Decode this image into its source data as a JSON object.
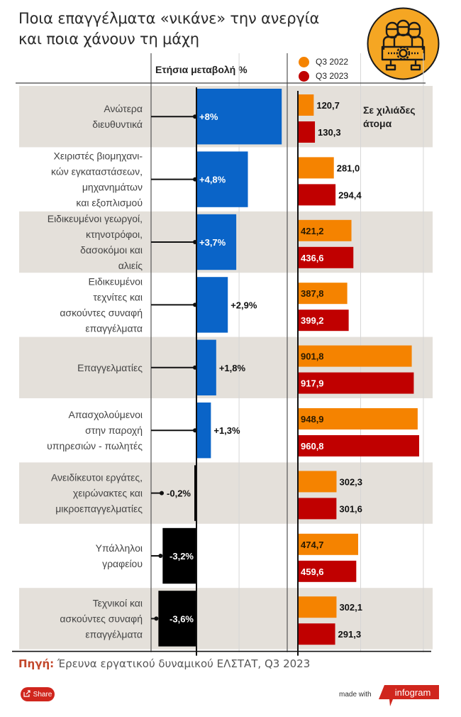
{
  "header": {
    "title_line1": "Ποια επαγγέλματα «νικάνε» την ανεργία",
    "title_line2": "και ποια χάνουν τη μάχη",
    "icon": "workers-gear-icon"
  },
  "chart_data": [
    {
      "type": "bar",
      "orientation": "horizontal",
      "title": "Ετήσια μεταβολή %",
      "categories": [
        [
          "Ανώτερα",
          "διευθυντικά"
        ],
        [
          "Χειριστές βιομηχανι-",
          "κών εγκαταστάσεων,",
          "μηχανημάτων",
          "και εξοπλισμού"
        ],
        [
          "Ειδικευμένοι γεωργοί,",
          "κτηνοτρόφοι,",
          "δασοκόμοι και",
          "αλιείς"
        ],
        [
          "Ειδικευμένοι",
          "τεχνίτες και",
          "ασκούντες συναφή",
          "επαγγέλματα"
        ],
        [
          "Επαγγελματίες"
        ],
        [
          "Απασχολούμενοι",
          "στην παροχή",
          "υπηρεσιών - πωλητές"
        ],
        [
          "Ανειδίκευτοι εργάτες,",
          "χειρώνακτες και",
          "μικροεπαγγελματίες"
        ],
        [
          "Υπάλληλοι",
          "γραφείου"
        ],
        [
          "Τεχνικοί και",
          "ασκούντες συναφή",
          "επαγγέλματα"
        ]
      ],
      "values": [
        8,
        4.8,
        3.7,
        2.9,
        1.8,
        1.3,
        -0.2,
        -3.2,
        -3.6
      ],
      "labels": [
        "+8%",
        "+4,8%",
        "+3,7%",
        "+2,9%",
        "+1,8%",
        "+1,3%",
        "-0,2%",
        "-3,2%",
        "-3,6%"
      ],
      "positive_color": "#0a64c8",
      "negative_color": "#000000",
      "xlim": [
        -4.5,
        8.5
      ]
    },
    {
      "type": "bar",
      "orientation": "horizontal",
      "title": "Σε χιλιάδες άτομα",
      "series": [
        {
          "name": "Q3 2022",
          "color": "#f58300",
          "values": [
            120.7,
            281.0,
            421.2,
            387.8,
            901.8,
            948.9,
            302.3,
            474.7,
            302.1
          ],
          "labels": [
            "120,7",
            "281,0",
            "421,2",
            "387,8",
            "901,8",
            "948,9",
            "302,3",
            "474,7",
            "302,1"
          ]
        },
        {
          "name": "Q3 2023",
          "color": "#c00000",
          "values": [
            130.3,
            294.4,
            436.6,
            399.2,
            917.9,
            960.8,
            301.6,
            459.6,
            291.3
          ],
          "labels": [
            "130,3",
            "294,4",
            "436,6",
            "399,2",
            "917,9",
            "960,8",
            "301,6",
            "459,6",
            "291,3"
          ]
        }
      ],
      "xlim": [
        0,
        1000
      ],
      "gridlines": [
        500,
        1000
      ],
      "legend": "top"
    }
  ],
  "legend": {
    "items": [
      {
        "label": "Q3 2022",
        "color": "#f58300"
      },
      {
        "label": "Q3 2023",
        "color": "#c00000"
      }
    ]
  },
  "units_label_line1": "Σε χιλιάδες",
  "units_label_line2": "άτομα",
  "footer": {
    "source_label": "Πηγή:",
    "source_text": "Έρευνα εργατικού δυναμικού ΕΛΣΤΑΤ, Q3 2023",
    "share_label": "Share",
    "made_with": "made with",
    "brand": "infogram"
  },
  "colors": {
    "row_band": "#e4e0da",
    "positive": "#0a64c8",
    "negative": "#000000",
    "q2022": "#f58300",
    "q2023": "#c00000"
  }
}
